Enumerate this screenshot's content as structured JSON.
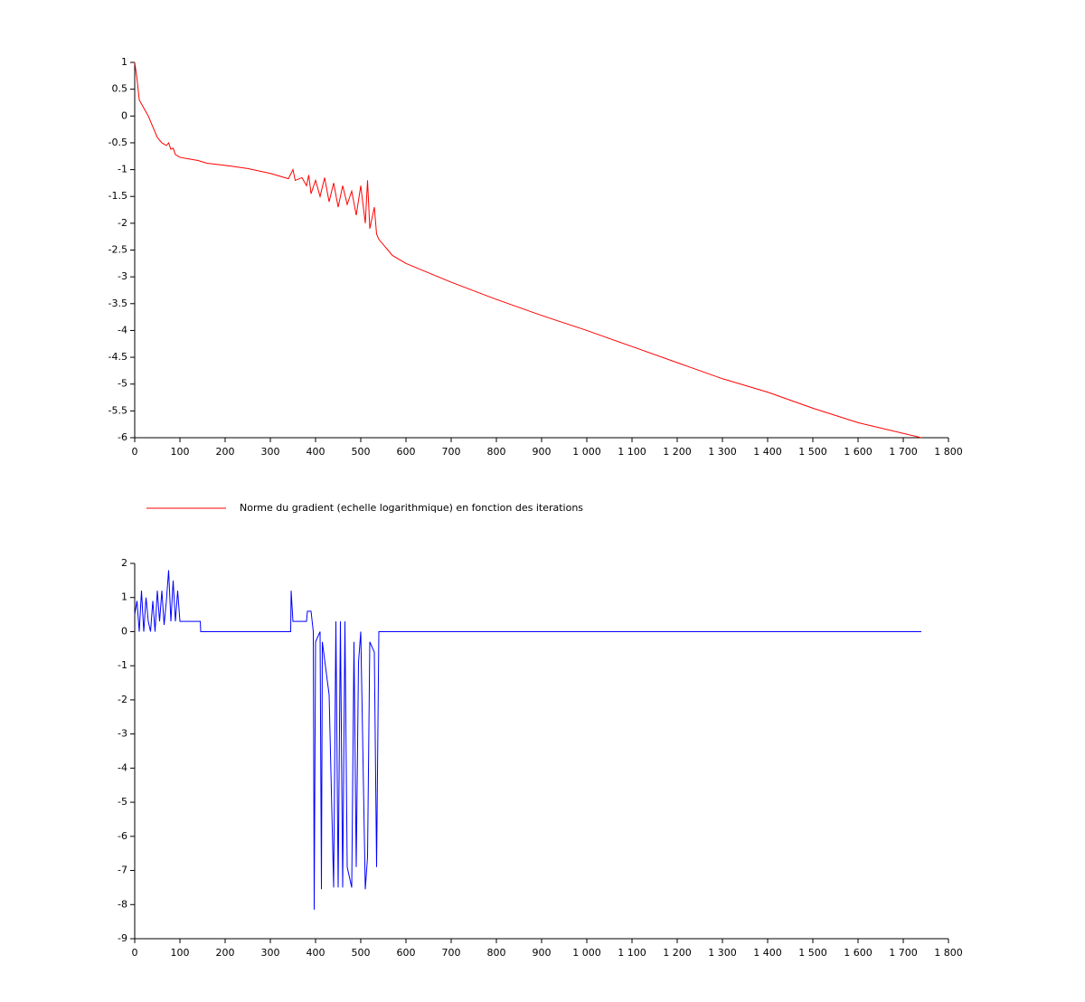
{
  "chart_data": [
    {
      "type": "line",
      "series": [
        {
          "name": "Norme du gradient (echelle logarithmique) en fonction des iterations",
          "color": "#ff0000",
          "x": [
            0,
            5,
            10,
            20,
            30,
            40,
            50,
            60,
            70,
            75,
            80,
            85,
            90,
            100,
            120,
            140,
            160,
            200,
            250,
            300,
            340,
            350,
            355,
            370,
            380,
            385,
            390,
            400,
            410,
            420,
            430,
            440,
            450,
            460,
            470,
            480,
            490,
            500,
            510,
            515,
            520,
            530,
            535,
            540,
            550,
            560,
            570,
            600,
            700,
            800,
            900,
            1000,
            1100,
            1200,
            1300,
            1400,
            1500,
            1600,
            1740
          ],
          "values": [
            1,
            0.7,
            0.3,
            0.15,
            0,
            -0.2,
            -0.4,
            -0.5,
            -0.55,
            -0.5,
            -0.62,
            -0.6,
            -0.72,
            -0.77,
            -0.8,
            -0.83,
            -0.88,
            -0.92,
            -0.98,
            -1.07,
            -1.17,
            -1.0,
            -1.2,
            -1.15,
            -1.3,
            -1.1,
            -1.45,
            -1.2,
            -1.5,
            -1.15,
            -1.6,
            -1.25,
            -1.7,
            -1.3,
            -1.65,
            -1.4,
            -1.85,
            -1.3,
            -2.0,
            -1.2,
            -2.1,
            -1.7,
            -2.2,
            -2.3,
            -2.4,
            -2.5,
            -2.6,
            -2.75,
            -3.1,
            -3.42,
            -3.72,
            -4.0,
            -4.3,
            -4.6,
            -4.9,
            -5.15,
            -5.45,
            -5.72,
            -6.0
          ]
        }
      ],
      "xlim": [
        0,
        1800
      ],
      "xticks": [
        0,
        100,
        200,
        300,
        400,
        500,
        600,
        700,
        800,
        900,
        {
          "value": 1000,
          "label": "1 000"
        },
        {
          "value": 1100,
          "label": "1 100"
        },
        {
          "value": 1200,
          "label": "1 200"
        },
        {
          "value": 1300,
          "label": "1 300"
        },
        {
          "value": 1400,
          "label": "1 400"
        },
        {
          "value": 1500,
          "label": "1 500"
        },
        {
          "value": 1600,
          "label": "1 600"
        },
        {
          "value": 1700,
          "label": "1 700"
        },
        {
          "value": 1800,
          "label": "1 800"
        }
      ],
      "ylim": [
        -6,
        1
      ],
      "yticks": [
        1,
        0.5,
        0,
        -0.5,
        -1,
        -1.5,
        -2,
        -2.5,
        -3,
        -3.5,
        -4,
        -4.5,
        -5,
        -5.5,
        -6
      ],
      "legend": "bottom"
    },
    {
      "type": "line",
      "series": [
        {
          "color": "#0000ff",
          "x": [
            0,
            5,
            10,
            15,
            20,
            25,
            30,
            35,
            40,
            45,
            50,
            55,
            60,
            65,
            70,
            75,
            80,
            85,
            90,
            95,
            100,
            145,
            146,
            345,
            346,
            350,
            380,
            382,
            390,
            395,
            397,
            400,
            410,
            413,
            415,
            430,
            440,
            445,
            450,
            455,
            460,
            465,
            470,
            480,
            485,
            490,
            495,
            500,
            510,
            515,
            520,
            530,
            535,
            540,
            1740
          ],
          "values": [
            0.5,
            0.9,
            0,
            1.2,
            0,
            1,
            0.3,
            0,
            0.9,
            0,
            1.2,
            0.3,
            1.2,
            0.2,
            0.9,
            1.8,
            0.3,
            1.5,
            0.3,
            1.2,
            0.3,
            0.3,
            0,
            0,
            1.2,
            0.3,
            0.3,
            0.6,
            0.6,
            0,
            -8.15,
            -0.3,
            0,
            -7.55,
            -0.3,
            -1.85,
            -7.5,
            0.3,
            -7.5,
            0.3,
            -7.5,
            0.3,
            -6.9,
            -7.5,
            -0.3,
            -6.9,
            -0.9,
            0,
            -7.55,
            -6.6,
            -0.3,
            -0.6,
            -6.9,
            0,
            0
          ]
        }
      ],
      "xlim": [
        0,
        1800
      ],
      "xticks": [
        0,
        100,
        200,
        300,
        400,
        500,
        600,
        700,
        800,
        900,
        {
          "value": 1000,
          "label": "1 000"
        },
        {
          "value": 1100,
          "label": "1 100"
        },
        {
          "value": 1200,
          "label": "1 200"
        },
        {
          "value": 1300,
          "label": "1 300"
        },
        {
          "value": 1400,
          "label": "1 400"
        },
        {
          "value": 1500,
          "label": "1 500"
        },
        {
          "value": 1600,
          "label": "1 600"
        },
        {
          "value": 1700,
          "label": "1 700"
        },
        {
          "value": 1800,
          "label": "1 800"
        }
      ],
      "ylim": [
        -9,
        2
      ],
      "yticks": [
        2,
        1,
        0,
        -1,
        -2,
        -3,
        -4,
        -5,
        -6,
        -7,
        -8,
        -9
      ]
    }
  ]
}
